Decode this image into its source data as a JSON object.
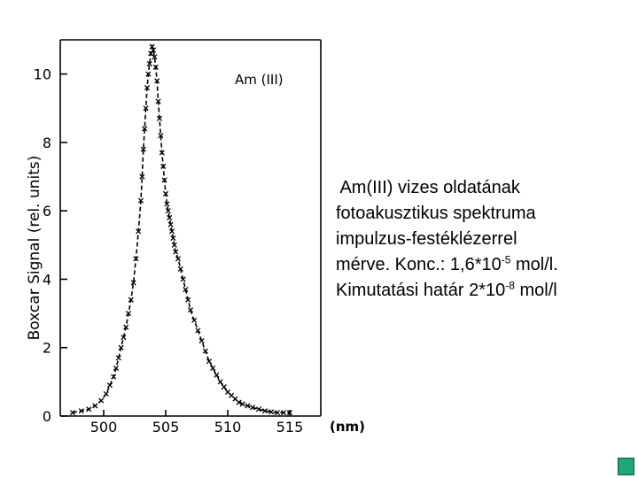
{
  "chart_data": {
    "type": "scatter",
    "ylabel": "Boxcar Signal (rel. units)",
    "xunit": "(nm)",
    "annotation": "Am (III)",
    "xlim": [
      496.5,
      517.5
    ],
    "ylim": [
      0,
      11
    ],
    "xticks": [
      "500",
      "505",
      "510",
      "515"
    ],
    "xtick_values": [
      500,
      505,
      510,
      515
    ],
    "yticks": [
      "0",
      "2",
      "4",
      "6",
      "8",
      "10"
    ],
    "ytick_values": [
      0,
      2,
      4,
      6,
      8,
      10
    ],
    "grid": false,
    "marker": "x",
    "color": "#000000",
    "series": [
      {
        "x": [
          497.5,
          498.2,
          498.8,
          499.3,
          499.8,
          500.2,
          500.5,
          500.8,
          501.0,
          501.2,
          501.4,
          501.6,
          501.8,
          502.0,
          502.2,
          502.4,
          502.6,
          502.8,
          503.0,
          503.1,
          503.2,
          503.3,
          503.4,
          503.5,
          503.6,
          503.7,
          503.8,
          503.9,
          504.0,
          504.1,
          504.2,
          504.3,
          504.4,
          504.5,
          504.6,
          504.7,
          504.8,
          504.9,
          505.0,
          505.1,
          505.2,
          505.3,
          505.4,
          505.5,
          505.6,
          505.7,
          505.8,
          506.0,
          506.2,
          506.4,
          506.6,
          506.8,
          507.0,
          507.3,
          507.6,
          507.9,
          508.2,
          508.5,
          508.8,
          509.1,
          509.4,
          509.7,
          510.0,
          510.3,
          510.6,
          510.9,
          511.2,
          511.6,
          512.0,
          512.5,
          513.0,
          513.5,
          514.0,
          514.5,
          515.0
        ],
        "y": [
          0.1,
          0.15,
          0.2,
          0.3,
          0.45,
          0.65,
          0.9,
          1.15,
          1.4,
          1.7,
          2.0,
          2.3,
          2.6,
          3.0,
          3.4,
          3.9,
          4.6,
          5.4,
          6.3,
          7.0,
          7.8,
          8.4,
          9.0,
          9.6,
          10.0,
          10.3,
          10.6,
          10.8,
          10.7,
          10.5,
          10.2,
          9.8,
          9.2,
          8.7,
          8.2,
          7.7,
          7.3,
          6.9,
          6.5,
          6.2,
          6.0,
          5.8,
          5.6,
          5.4,
          5.2,
          5.0,
          4.8,
          4.6,
          4.3,
          4.0,
          3.7,
          3.4,
          3.1,
          2.8,
          2.5,
          2.2,
          1.9,
          1.6,
          1.4,
          1.2,
          1.0,
          0.85,
          0.7,
          0.6,
          0.5,
          0.4,
          0.35,
          0.3,
          0.25,
          0.2,
          0.15,
          0.12,
          0.1,
          0.1,
          0.1
        ]
      }
    ]
  },
  "caption": {
    "line1": " Am(III) vizes oldatának",
    "line2": "fotoakusztikus spektruma",
    "line3": "impulzus-festéklézerrel",
    "line4_pre": "mérve. Konc.: 1,6*10",
    "line4_sup": "-5",
    "line4_post": " mol/l.",
    "line5_pre": "Kimutatási határ 2*10",
    "line5_sup": "-8",
    "line5_post": " mol/l"
  }
}
